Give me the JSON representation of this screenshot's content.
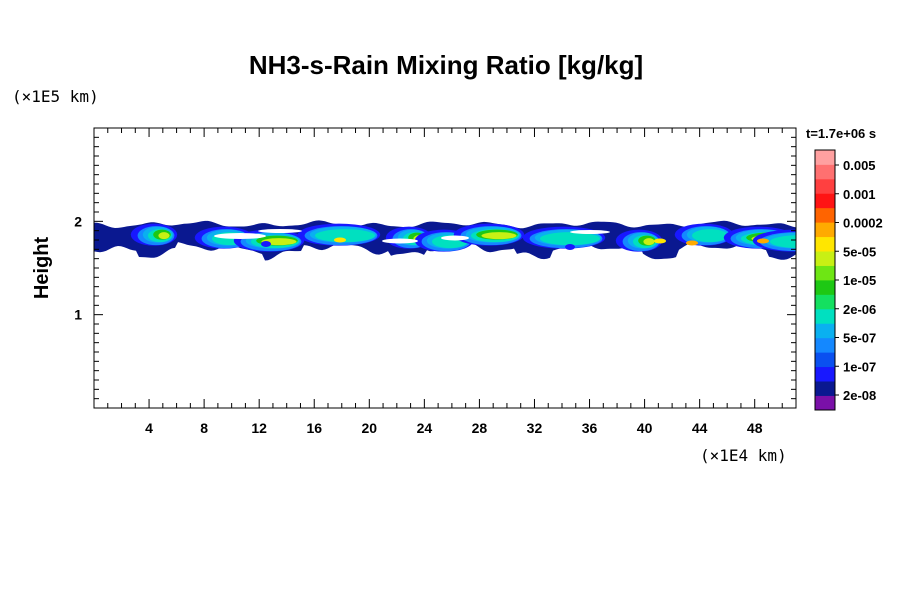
{
  "chart_data": {
    "type": "heatmap",
    "title": "NH3-s-Rain Mixing Ratio [kg/kg]",
    "xlabel": "",
    "ylabel": "Height",
    "x_unit": "(×1E4 km)",
    "y_unit": "(×1E5 km)",
    "time_label": "t=1.7e+06 s",
    "xlim": [
      0,
      51
    ],
    "ylim": [
      0,
      3
    ],
    "x_ticks": [
      4,
      8,
      12,
      16,
      20,
      24,
      28,
      32,
      36,
      40,
      44,
      48
    ],
    "y_ticks": [
      1,
      2
    ],
    "colorbar": {
      "labels": [
        "0.005",
        "0.001",
        "0.0002",
        "5e-05",
        "1e-05",
        "2e-06",
        "5e-07",
        "1e-07",
        "2e-08"
      ],
      "colors": [
        "#7a10a8",
        "#0a1890",
        "#1818ff",
        "#0a50f0",
        "#1488ff",
        "#0ab0f0",
        "#00e0c0",
        "#14e060",
        "#1ec814",
        "#6ee614",
        "#c8f014",
        "#ffe600",
        "#ffaa00",
        "#ff6400",
        "#ff1414",
        "#ff4040",
        "#ff7070",
        "#ffa0a0"
      ]
    },
    "layer": {
      "x_range": [
        0,
        51
      ],
      "top_y": 2.0,
      "bottom_y": 1.65,
      "note_ref": "cloud band"
    }
  }
}
